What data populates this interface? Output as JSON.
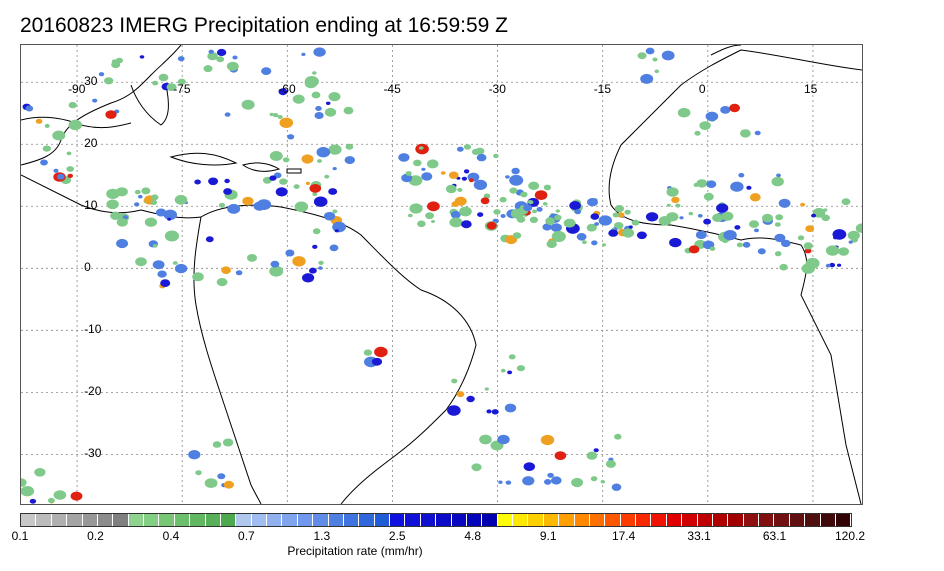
{
  "title": "20160823 IMERG Precipitation ending at 16:59:59 Z",
  "map": {
    "lon_labels": [
      {
        "text": "-90",
        "lon": -90
      },
      {
        "text": "-75",
        "lon": -75
      },
      {
        "text": "-60",
        "lon": -60
      },
      {
        "text": "-45",
        "lon": -45
      },
      {
        "text": "-30",
        "lon": -30
      },
      {
        "text": "-15",
        "lon": -15
      },
      {
        "text": "0",
        "lon": 0
      },
      {
        "text": "15",
        "lon": 15
      }
    ],
    "lat_labels": [
      {
        "text": "30",
        "lat": 30
      },
      {
        "text": "20",
        "lat": 20
      },
      {
        "text": "10",
        "lat": 10
      },
      {
        "text": "0",
        "lat": 0
      },
      {
        "text": "-10",
        "lat": -10
      },
      {
        "text": "-20",
        "lat": -20
      },
      {
        "text": "-30",
        "lat": -30
      }
    ],
    "grid": "dotted",
    "coastline_color": "#000000",
    "precip_colors": {
      "light": "#7fc98a",
      "moderate": "#4f7fe0",
      "heavy": "#1a1ad6",
      "very_heavy": "#f0a020",
      "extreme": "#e02010"
    }
  },
  "colorbar": {
    "title": "Precipitation rate (mm/hr)",
    "labels": [
      "0.1",
      "0.2",
      "0.4",
      "0.7",
      "1.3",
      "2.5",
      "4.8",
      "9.1",
      "17.4",
      "33.1",
      "63.1",
      "120.2"
    ],
    "colors": [
      "#c8c8c8",
      "#bcbcbc",
      "#b0b0b0",
      "#a4a4a4",
      "#989898",
      "#8c8c8c",
      "#808080",
      "#8ed48e",
      "#82ce82",
      "#76c676",
      "#6cbf6c",
      "#62b862",
      "#58b058",
      "#4ea84e",
      "#b0c8f0",
      "#a0bcf0",
      "#90b0f0",
      "#80a4ee",
      "#7098ec",
      "#608ce8",
      "#5080e4",
      "#4074e0",
      "#3068dc",
      "#205cd8",
      "#1010e0",
      "#1010d8",
      "#1010d0",
      "#0c0cc8",
      "#0808c0",
      "#0404b8",
      "#0000b0",
      "#ffff00",
      "#ffe800",
      "#ffd000",
      "#ffb800",
      "#ffa000",
      "#ff8800",
      "#ff7000",
      "#ff5800",
      "#ff3c00",
      "#f82800",
      "#f01400",
      "#e00000",
      "#d00000",
      "#c00000",
      "#b00000",
      "#a00000",
      "#901010",
      "#801010",
      "#701010",
      "#601010",
      "#501010",
      "#400808",
      "#300404"
    ]
  }
}
